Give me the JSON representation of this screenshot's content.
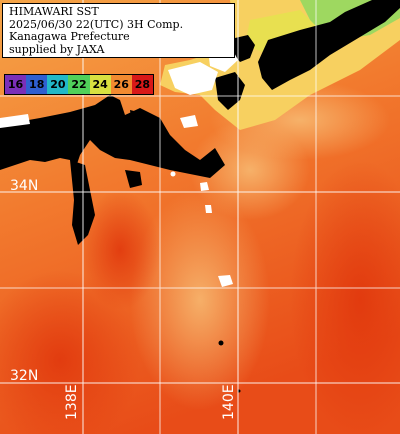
{
  "title_lines": [
    "HIMAWARI SST",
    "2025/06/30 22(UTC) 3H Comp.",
    "Kanagawa Prefecture",
    "supplied by JAXA"
  ],
  "legend": {
    "entries": [
      {
        "label": "16",
        "color": "#7a2fb8",
        "text_color": "#000000"
      },
      {
        "label": "18",
        "color": "#2f5fd0",
        "text_color": "#000000"
      },
      {
        "label": "20",
        "color": "#22b8c8",
        "text_color": "#000000"
      },
      {
        "label": "22",
        "color": "#50d05a",
        "text_color": "#000000"
      },
      {
        "label": "24",
        "color": "#d8e040",
        "text_color": "#000000"
      },
      {
        "label": "26",
        "color": "#f28a30",
        "text_color": "#000000"
      },
      {
        "label": "28",
        "color": "#d81818",
        "text_color": "#000000"
      }
    ]
  },
  "grid": {
    "latitudes": [
      {
        "label": "34N"
      },
      {
        "label": "32N"
      }
    ],
    "longitudes": [
      {
        "label": "138E"
      },
      {
        "label": "140E"
      }
    ]
  },
  "colors": {
    "land": "#000000",
    "no_data": "#ffffff",
    "grid_line": "#ffffff",
    "warm_sea": "#f05a1c",
    "mid_sea": "#f5a040",
    "cool_sea": "#f8c860"
  }
}
